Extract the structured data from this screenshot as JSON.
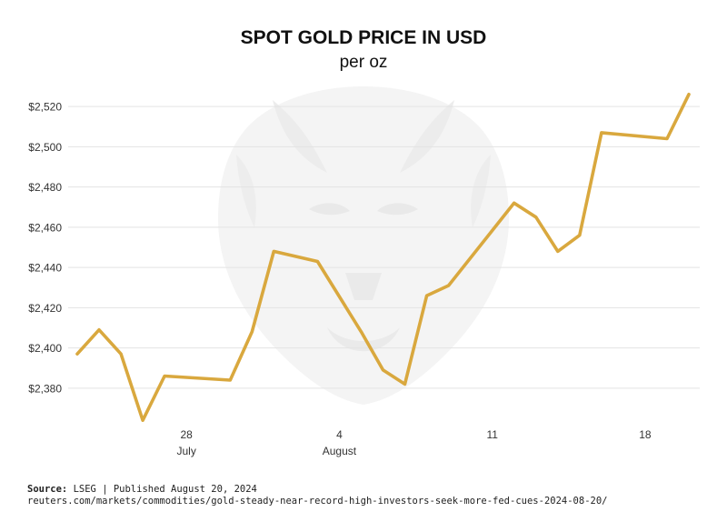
{
  "header": {
    "title": "SPOT GOLD PRICE IN USD",
    "subtitle": "per oz"
  },
  "footer": {
    "source_label": "Source:",
    "source_text": "LSEG | Published August 20, 2024",
    "url": "reuters.com/markets/commodities/gold-steady-near-record-high-investors-seek-more-fed-cues-2024-08-20/"
  },
  "colors": {
    "line": "#d9a83e",
    "grid": "#e3e3e3",
    "axis_text": "#333333",
    "watermark": "#f1f1f1"
  },
  "icons": {
    "watermark": "lion-head-watermark-icon"
  },
  "chart_data": {
    "type": "line",
    "title": "SPOT GOLD PRICE IN USD",
    "subtitle": "per oz",
    "x": [
      "2024-07-23",
      "2024-07-24",
      "2024-07-25",
      "2024-07-26",
      "2024-07-27",
      "2024-07-30",
      "2024-07-31",
      "2024-08-01",
      "2024-08-03",
      "2024-08-05",
      "2024-08-06",
      "2024-08-07",
      "2024-08-08",
      "2024-08-09",
      "2024-08-12",
      "2024-08-13",
      "2024-08-14",
      "2024-08-15",
      "2024-08-16",
      "2024-08-19",
      "2024-08-20"
    ],
    "series": [
      {
        "values": [
          2397,
          2409,
          2397,
          2364,
          2386,
          2384,
          2408,
          2448,
          2443,
          2408,
          2389,
          2382,
          2426,
          2431,
          2472,
          2465,
          2448,
          2456,
          2507,
          2504,
          2526
        ]
      }
    ],
    "x_ticks": [
      {
        "date": "2024-07-28",
        "label": "28",
        "month": "July"
      },
      {
        "date": "2024-08-04",
        "label": "4",
        "month": "August"
      },
      {
        "date": "2024-08-11",
        "label": "11",
        "month": ""
      },
      {
        "date": "2024-08-18",
        "label": "18",
        "month": ""
      }
    ],
    "y_ticks": [
      "$2,380",
      "$2,400",
      "$2,420",
      "$2,440",
      "$2,460",
      "$2,480",
      "$2,500",
      "$2,520"
    ],
    "ylim": [
      2365,
      2530
    ],
    "grid": true,
    "legend": "none"
  }
}
